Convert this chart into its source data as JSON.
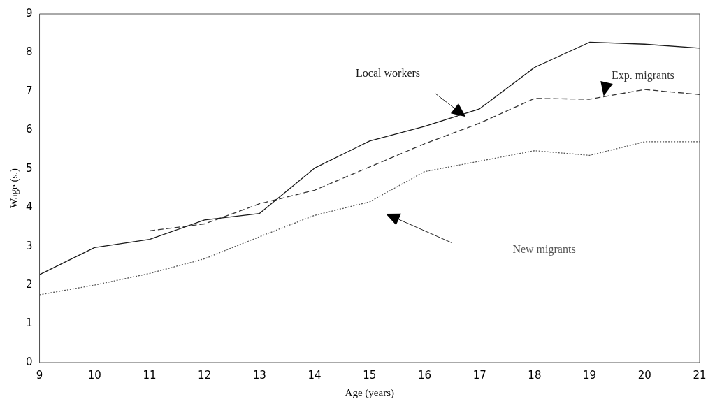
{
  "chart_data": {
    "type": "line",
    "xlabel": "Age (years)",
    "ylabel": "Wage (s.)",
    "x": [
      9,
      10,
      11,
      12,
      13,
      14,
      15,
      16,
      17,
      18,
      19,
      20,
      21
    ],
    "series": [
      {
        "name": "Local workers",
        "color": "#1a1a1a",
        "line_style": "solid",
        "values": [
          2.27,
          2.97,
          3.18,
          3.68,
          3.85,
          5.02,
          5.72,
          6.1,
          6.55,
          7.62,
          8.27,
          8.22,
          8.12
        ]
      },
      {
        "name": "Exp. migrants",
        "color": "#333333",
        "line_style": "dashed",
        "values": [
          null,
          null,
          3.4,
          3.58,
          4.1,
          4.45,
          5.05,
          5.65,
          6.18,
          6.82,
          6.8,
          7.05,
          6.92
        ]
      },
      {
        "name": "New migrants",
        "color": "#555555",
        "line_style": "dotted",
        "values": [
          1.75,
          2.0,
          2.3,
          2.68,
          3.25,
          3.8,
          4.15,
          4.93,
          5.2,
          5.47,
          5.35,
          5.7,
          5.7
        ]
      }
    ],
    "xlim": [
      9,
      21
    ],
    "xticks": [
      9,
      10,
      11,
      12,
      13,
      14,
      15,
      16,
      17,
      18,
      19,
      20,
      21
    ],
    "ylim": [
      0,
      9
    ],
    "yticks": [
      0,
      1,
      2,
      3,
      4,
      5,
      6,
      7,
      8,
      9
    ],
    "grid": false,
    "legend": false,
    "marker": "none"
  }
}
